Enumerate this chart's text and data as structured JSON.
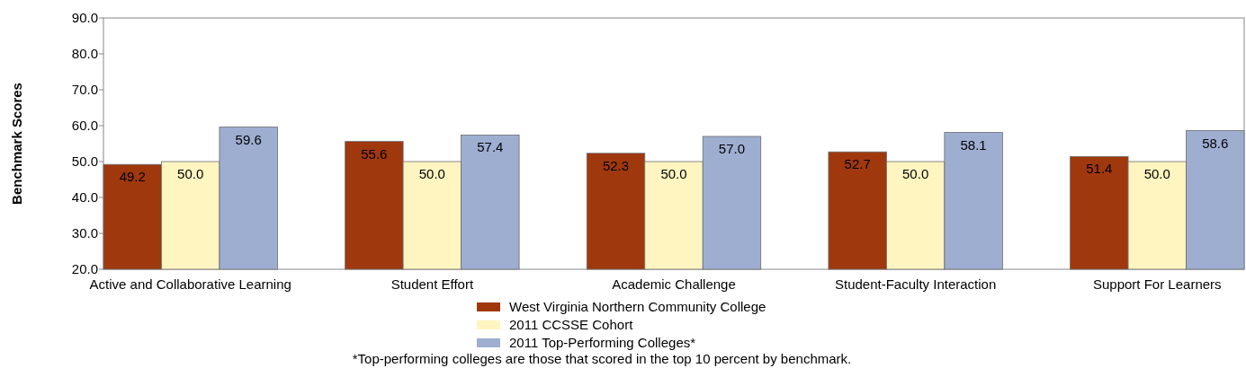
{
  "chart_data": {
    "type": "bar",
    "ylabel": "Benchmark Scores",
    "categories": [
      "Active and Collaborative Learning",
      "Student Effort",
      "Academic Challenge",
      "Student-Faculty Interaction",
      "Support For Learners"
    ],
    "series": [
      {
        "name": "West Virginia Northern Community College",
        "color": "#a0380e",
        "values": [
          49.2,
          55.6,
          52.3,
          52.7,
          51.4
        ],
        "value_labels": [
          "49.2",
          "55.6",
          "52.3",
          "52.7",
          "51.4"
        ]
      },
      {
        "name": "2011 CCSSE Cohort",
        "color": "#fff5c0",
        "values": [
          50.0,
          50.0,
          50.0,
          50.0,
          50.0
        ],
        "value_labels": [
          "50.0",
          "50.0",
          "50.0",
          "50.0",
          "50.0"
        ]
      },
      {
        "name": "2011 Top-Performing Colleges*",
        "color": "#9eaed1",
        "values": [
          59.6,
          57.4,
          57.0,
          58.1,
          58.6
        ],
        "value_labels": [
          "59.6",
          "57.4",
          "57.0",
          "58.1",
          "58.6"
        ]
      }
    ],
    "ylim": [
      20,
      90
    ],
    "yticks": [
      {
        "value": 20,
        "label": "20.0"
      },
      {
        "value": 30,
        "label": "30.0"
      },
      {
        "value": 40,
        "label": "40.0"
      },
      {
        "value": 50,
        "label": "50.0"
      },
      {
        "value": 60,
        "label": "60.0"
      },
      {
        "value": 70,
        "label": "70.0"
      },
      {
        "value": 80,
        "label": "80.0"
      },
      {
        "value": 90,
        "label": "90.0"
      }
    ],
    "legend": "bottom",
    "grid": false,
    "annotations": [
      "*Top-performing colleges are those that scored in the top 10 percent by benchmark."
    ]
  }
}
